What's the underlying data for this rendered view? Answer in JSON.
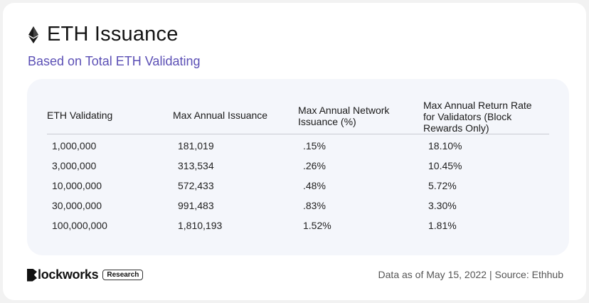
{
  "header": {
    "title": "ETH Issuance",
    "subtitle": "Based on Total ETH Validating",
    "icon": "ethereum-icon"
  },
  "table": {
    "headers": [
      [
        "ETH Validating"
      ],
      [
        "Max Annual Issuance"
      ],
      [
        "Max Annual Network",
        "Issuance (%)"
      ],
      [
        "Max Annual Return Rate",
        "for Validators (Block",
        "Rewards Only)"
      ]
    ],
    "rows": [
      [
        "1,000,000",
        "181,019",
        ".15%",
        "18.10%"
      ],
      [
        "3,000,000",
        "313,534",
        ".26%",
        "10.45%"
      ],
      [
        "10,000,000",
        "572,433",
        ".48%",
        "5.72%"
      ],
      [
        "30,000,000",
        "991,483",
        ".83%",
        "3.30%"
      ],
      [
        "100,000,000",
        "1,810,193",
        "1.52%",
        "1.81%"
      ]
    ]
  },
  "footer": {
    "brand_b": "B",
    "brand": "lockworks",
    "badge": "Research",
    "source": "Data as of May 15, 2022 | Source: Ethhub"
  },
  "colors": {
    "subtitle": "#5b4fb5",
    "panel": "#f4f6fb"
  }
}
